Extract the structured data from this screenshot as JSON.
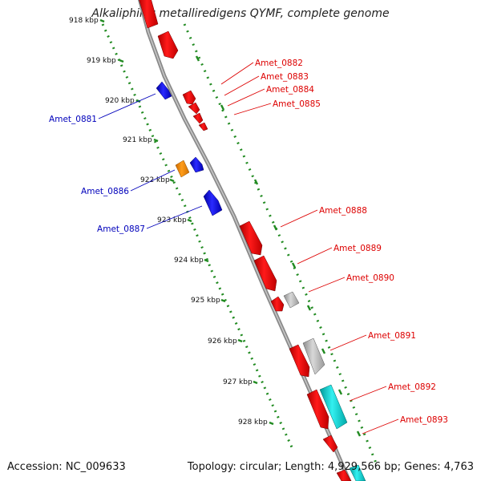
{
  "title": "Alkaliphilus metalliredigens QYMF, complete genome",
  "footer": {
    "accession": "Accession: NC_009633",
    "summary": "Topology: circular; Length: 4,929,566 bp; Genes: 4,763"
  },
  "colors": {
    "forward_gene": "#ff0000",
    "reverse_gene": "#0000ee",
    "other_gene": "#ff8c00",
    "grey_feature": "#bbbbbb",
    "cyan_feature": "#00cccc",
    "ruler": "#228b22",
    "backbone": "#888888",
    "forward_label": "#dd0000",
    "reverse_label": "#0000bb"
  },
  "ruler_labels": [
    "918 kbp",
    "919 kbp",
    "920 kbp",
    "921 kbp",
    "922 kbp",
    "923 kbp",
    "924 kbp",
    "925 kbp",
    "926 kbp",
    "927 kbp",
    "928 kbp"
  ],
  "reverse_genes": [
    {
      "label": "Amet_0881"
    },
    {
      "label": "Amet_0886"
    },
    {
      "label": "Amet_0887"
    }
  ],
  "forward_genes": [
    {
      "label": "Amet_0882"
    },
    {
      "label": "Amet_0883"
    },
    {
      "label": "Amet_0884"
    },
    {
      "label": "Amet_0885"
    },
    {
      "label": "Amet_0888"
    },
    {
      "label": "Amet_0889"
    },
    {
      "label": "Amet_0890"
    },
    {
      "label": "Amet_0891"
    },
    {
      "label": "Amet_0892"
    },
    {
      "label": "Amet_0893"
    }
  ]
}
